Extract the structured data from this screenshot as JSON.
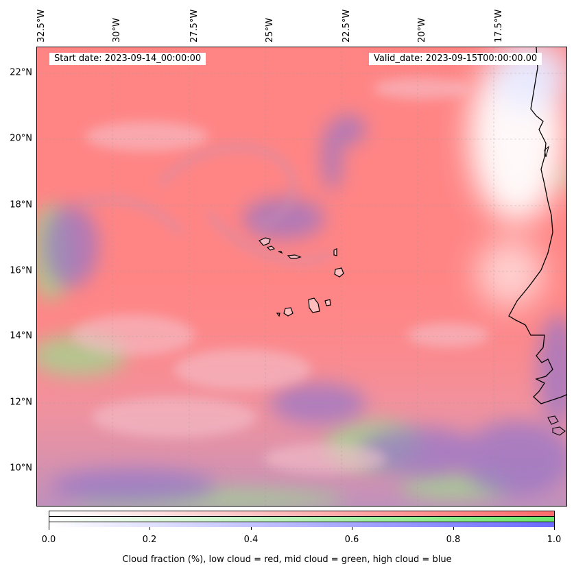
{
  "header": {
    "start_date": "Start date: 2023-09-14_00:00:00",
    "valid_date": "Valid_date: 2023-09-15T00:00:00.00"
  },
  "map": {
    "lon_labels": [
      "32.5°W",
      "30°W",
      "27.5°W",
      "25°W",
      "22.5°W",
      "20°W",
      "17.5°W"
    ],
    "lat_labels": [
      "22°N",
      "20°N",
      "18°N",
      "16°N",
      "14°N",
      "12°N",
      "10°N"
    ],
    "layers": {
      "low_cloud_color": "#ff8080",
      "mid_cloud_color": "#80e880",
      "high_cloud_color": "#8080ee"
    },
    "features": [
      "Cape Verde islands",
      "West African coastline"
    ]
  },
  "colorbar": {
    "ticks": [
      "0.0",
      "0.2",
      "0.4",
      "0.6",
      "0.8",
      "1.0"
    ],
    "label": "Cloud fraction (%), low cloud = red, mid cloud = green, high cloud = blue",
    "range": [
      0.0,
      1.0
    ],
    "colors": {
      "low": "#ff6b6b",
      "mid": "#6be86b",
      "high": "#6b6bff"
    }
  }
}
